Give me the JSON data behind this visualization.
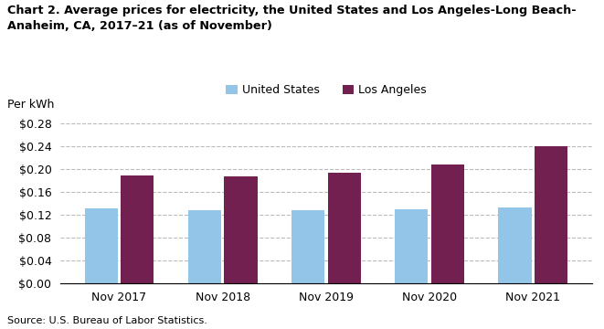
{
  "title_line1": "Chart 2. Average prices for electricity, the United States and Los Angeles-Long Beach-",
  "title_line2": "Anaheim, CA, 2017–21 (as of November)",
  "ylabel": "Per kWh",
  "source": "Source: U.S. Bureau of Labor Statistics.",
  "categories": [
    "Nov 2017",
    "Nov 2018",
    "Nov 2019",
    "Nov 2020",
    "Nov 2021"
  ],
  "us_values": [
    0.13,
    0.128,
    0.127,
    0.1295,
    0.133
  ],
  "la_values": [
    0.189,
    0.1875,
    0.193,
    0.207,
    0.239
  ],
  "us_color": "#92C5E8",
  "la_color": "#722050",
  "us_label": "United States",
  "la_label": "Los Angeles",
  "ylim": [
    0,
    0.3
  ],
  "yticks": [
    0.0,
    0.04,
    0.08,
    0.12,
    0.16,
    0.2,
    0.24,
    0.28
  ],
  "background_color": "#ffffff",
  "grid_color": "#bbbbbb"
}
